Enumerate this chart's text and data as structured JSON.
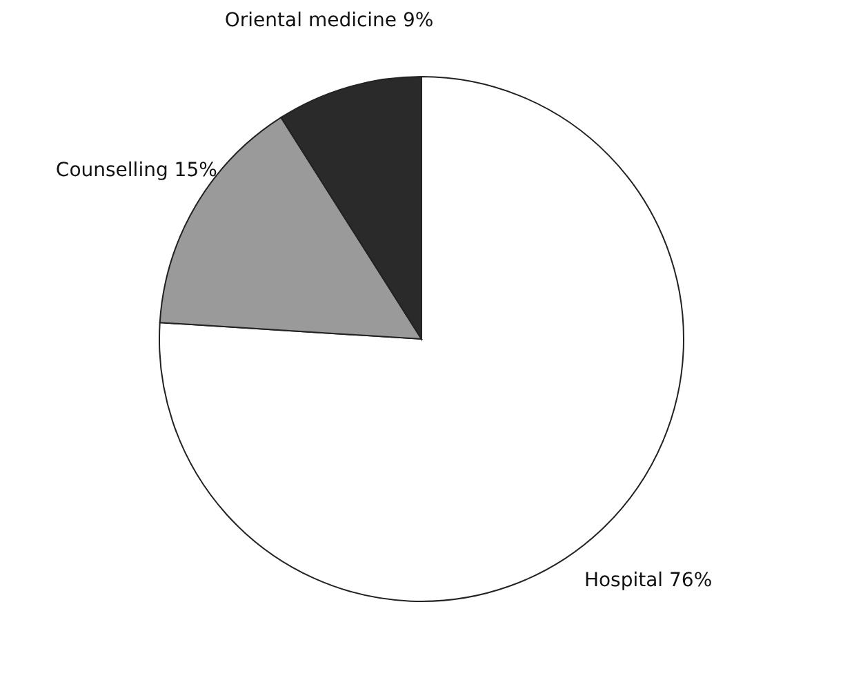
{
  "chart_data": {
    "type": "pie",
    "categories": [
      "Hospital",
      "Counselling",
      "Oriental medicine"
    ],
    "values": [
      76,
      15,
      9
    ],
    "colors": [
      "#ffffff",
      "#9a9a9a",
      "#2a2a2a"
    ],
    "value_labels": [
      "76%",
      "15%",
      "9%"
    ]
  }
}
